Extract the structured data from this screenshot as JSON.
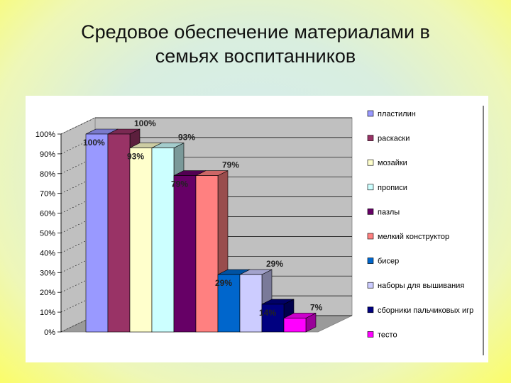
{
  "slide": {
    "title_line1": "Средовое обеспечение материалами в",
    "title_line2": "семьях воспитанников"
  },
  "chart_data": {
    "type": "bar",
    "title": "Средовое обеспечение материалами в семьях воспитанников",
    "ylim": [
      0,
      100
    ],
    "yticks": [
      "0%",
      "10%",
      "20%",
      "30%",
      "40%",
      "50%",
      "60%",
      "70%",
      "80%",
      "90%",
      "100%"
    ],
    "legend_position": "right",
    "grid": true,
    "series": [
      {
        "name": "пластилин",
        "value": 100,
        "label": "100%",
        "color": "#9999ff"
      },
      {
        "name": "раскаски",
        "value": 100,
        "label": "100%",
        "color": "#993366"
      },
      {
        "name": "мозайки",
        "value": 93,
        "label": "93%",
        "color": "#ffffcc"
      },
      {
        "name": "прописи",
        "value": 93,
        "label": "93%",
        "color": "#ccffff"
      },
      {
        "name": "пазлы",
        "value": 79,
        "label": "79%",
        "color": "#660066"
      },
      {
        "name": "мелкий конструктор",
        "value": 79,
        "label": "79%",
        "color": "#ff8080"
      },
      {
        "name": "бисер",
        "value": 29,
        "label": "29%",
        "color": "#0066cc"
      },
      {
        "name": "наборы для вышивания",
        "value": 29,
        "label": "29%",
        "color": "#ccccff"
      },
      {
        "name": "сборники пальчиковых игр",
        "value": 14,
        "label": "14%",
        "color": "#000080"
      },
      {
        "name": "тесто",
        "value": 7,
        "label": "7%",
        "color": "#ff00ff"
      }
    ]
  }
}
